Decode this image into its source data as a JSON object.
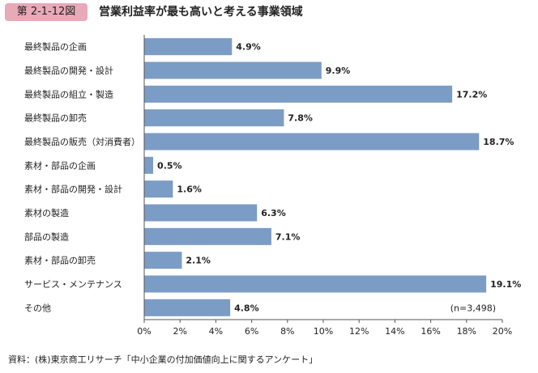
{
  "figure": {
    "number": "第 2-1-12図",
    "title": "営業利益率が最も高いと考える事業領域",
    "source": "資料：(株)東京商工リサーチ「中小企業の付加価値向上に関するアンケート」"
  },
  "chart_data": {
    "type": "bar",
    "orientation": "horizontal",
    "categories": [
      "最終製品の企画",
      "最終製品の開発・設計",
      "最終製品の組立・製造",
      "最終製品の卸売",
      "最終製品の販売（対消費者）",
      "素材・部品の企画",
      "素材・部品の開発・設計",
      "素材の製造",
      "部品の製造",
      "素材・部品の卸売",
      "サービス・メンテナンス",
      "その他"
    ],
    "values": [
      4.9,
      9.9,
      17.2,
      7.8,
      18.7,
      0.5,
      1.6,
      6.3,
      7.1,
      2.1,
      19.1,
      4.8
    ],
    "value_labels": [
      "4.9%",
      "9.9%",
      "17.2%",
      "7.8%",
      "18.7%",
      "0.5%",
      "1.6%",
      "6.3%",
      "7.1%",
      "2.1%",
      "19.1%",
      "4.8%"
    ],
    "xlim": [
      0,
      20
    ],
    "x_ticks": [
      "0%",
      "2%",
      "4%",
      "6%",
      "8%",
      "10%",
      "12%",
      "14%",
      "16%",
      "18%",
      "20%"
    ],
    "annotation": "(n=3,498)",
    "bar_color": "#7b9cc4",
    "grid": false,
    "legend": "none"
  }
}
